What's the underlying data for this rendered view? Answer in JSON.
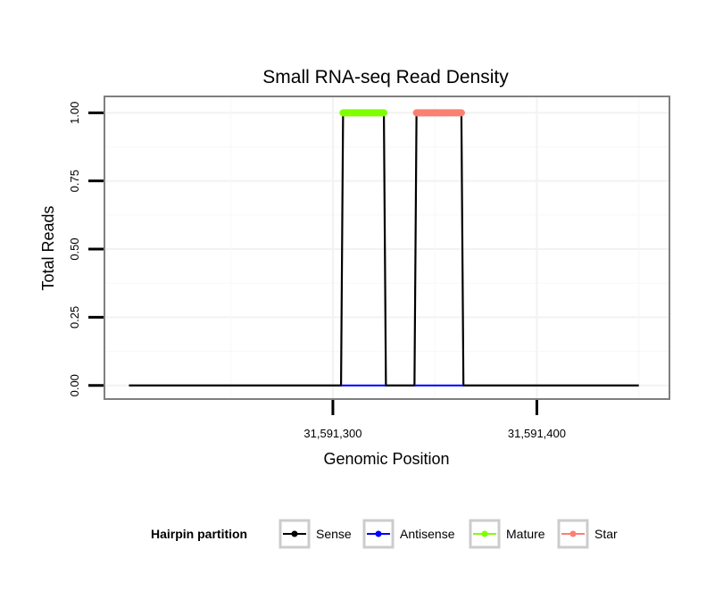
{
  "chart_data": {
    "type": "line",
    "title": "Small RNA-seq Read Density",
    "xlabel": "Genomic Position",
    "ylabel": "Total Reads",
    "xlim": [
      31591188,
      31591465
    ],
    "ylim": [
      -0.05,
      1.06
    ],
    "x_ticks": [
      {
        "value": 31591300,
        "label": "31,591,300"
      },
      {
        "value": 31591400,
        "label": "31,591,400"
      }
    ],
    "y_ticks": [
      {
        "value": 0,
        "label": "0.00"
      },
      {
        "value": 0.25,
        "label": "0.25"
      },
      {
        "value": 0.5,
        "label": "0.50"
      },
      {
        "value": 0.75,
        "label": "0.75"
      },
      {
        "value": 1,
        "label": "1.00"
      }
    ],
    "grid": true,
    "legend": {
      "title": "Hairpin partition",
      "position": "bottom",
      "items": [
        {
          "name": "Sense",
          "color": "#000000"
        },
        {
          "name": "Antisense",
          "color": "#0000ff"
        },
        {
          "name": "Mature",
          "color": "#7fff00"
        },
        {
          "name": "Star",
          "color": "#fa8072"
        }
      ]
    },
    "series": [
      {
        "name": "Sense",
        "color": "#000000",
        "x": [
          31591200,
          31591304,
          31591305,
          31591325,
          31591326,
          31591340,
          31591341,
          31591363,
          31591364,
          31591450
        ],
        "y": [
          0,
          0,
          1,
          1,
          0,
          0,
          1,
          1,
          0,
          0
        ]
      },
      {
        "name": "Antisense",
        "color": "#0000ff",
        "x": [
          31591304,
          31591326,
          31591340,
          31591364
        ],
        "y": [
          0,
          0,
          0,
          0
        ],
        "segments": [
          [
            0,
            1
          ],
          [
            2,
            3
          ]
        ]
      },
      {
        "name": "Mature",
        "color": "#7fff00",
        "x": [
          31591305,
          31591325
        ],
        "y": [
          1,
          1
        ]
      },
      {
        "name": "Star",
        "color": "#fa8072",
        "x": [
          31591341,
          31591363
        ],
        "y": [
          1,
          1
        ]
      }
    ]
  }
}
